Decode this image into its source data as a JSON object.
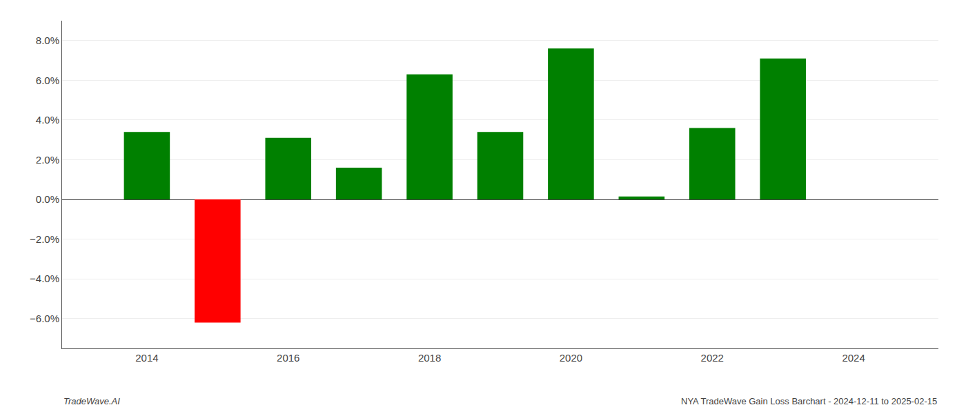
{
  "chart_data": {
    "type": "bar",
    "x": [
      2014,
      2015,
      2016,
      2017,
      2018,
      2019,
      2020,
      2021,
      2022,
      2023
    ],
    "values": [
      0.034,
      -0.062,
      0.031,
      0.016,
      0.063,
      0.034,
      0.076,
      0.0015,
      0.036,
      0.071
    ],
    "colors": [
      "#008000",
      "#ff0000",
      "#008000",
      "#008000",
      "#008000",
      "#008000",
      "#008000",
      "#008000",
      "#008000",
      "#008000"
    ],
    "xlim": [
      2012.8,
      2025.2
    ],
    "xticks": [
      2014,
      2016,
      2018,
      2020,
      2022,
      2024
    ],
    "ylim": [
      -0.075,
      0.09
    ],
    "yticks": [
      {
        "value": -0.06,
        "label": "−6.0%"
      },
      {
        "value": -0.04,
        "label": "−4.0%"
      },
      {
        "value": -0.02,
        "label": "−2.0%"
      },
      {
        "value": 0.0,
        "label": "0.0%"
      },
      {
        "value": 0.02,
        "label": "2.0%"
      },
      {
        "value": 0.04,
        "label": "4.0%"
      },
      {
        "value": 0.06,
        "label": "6.0%"
      },
      {
        "value": 0.08,
        "label": "8.0%"
      }
    ],
    "grid": true,
    "annotations": [
      "TradeWave.AI",
      "NYA TradeWave Gain Loss Barchart - 2024-12-11 to 2025-02-15"
    ]
  }
}
